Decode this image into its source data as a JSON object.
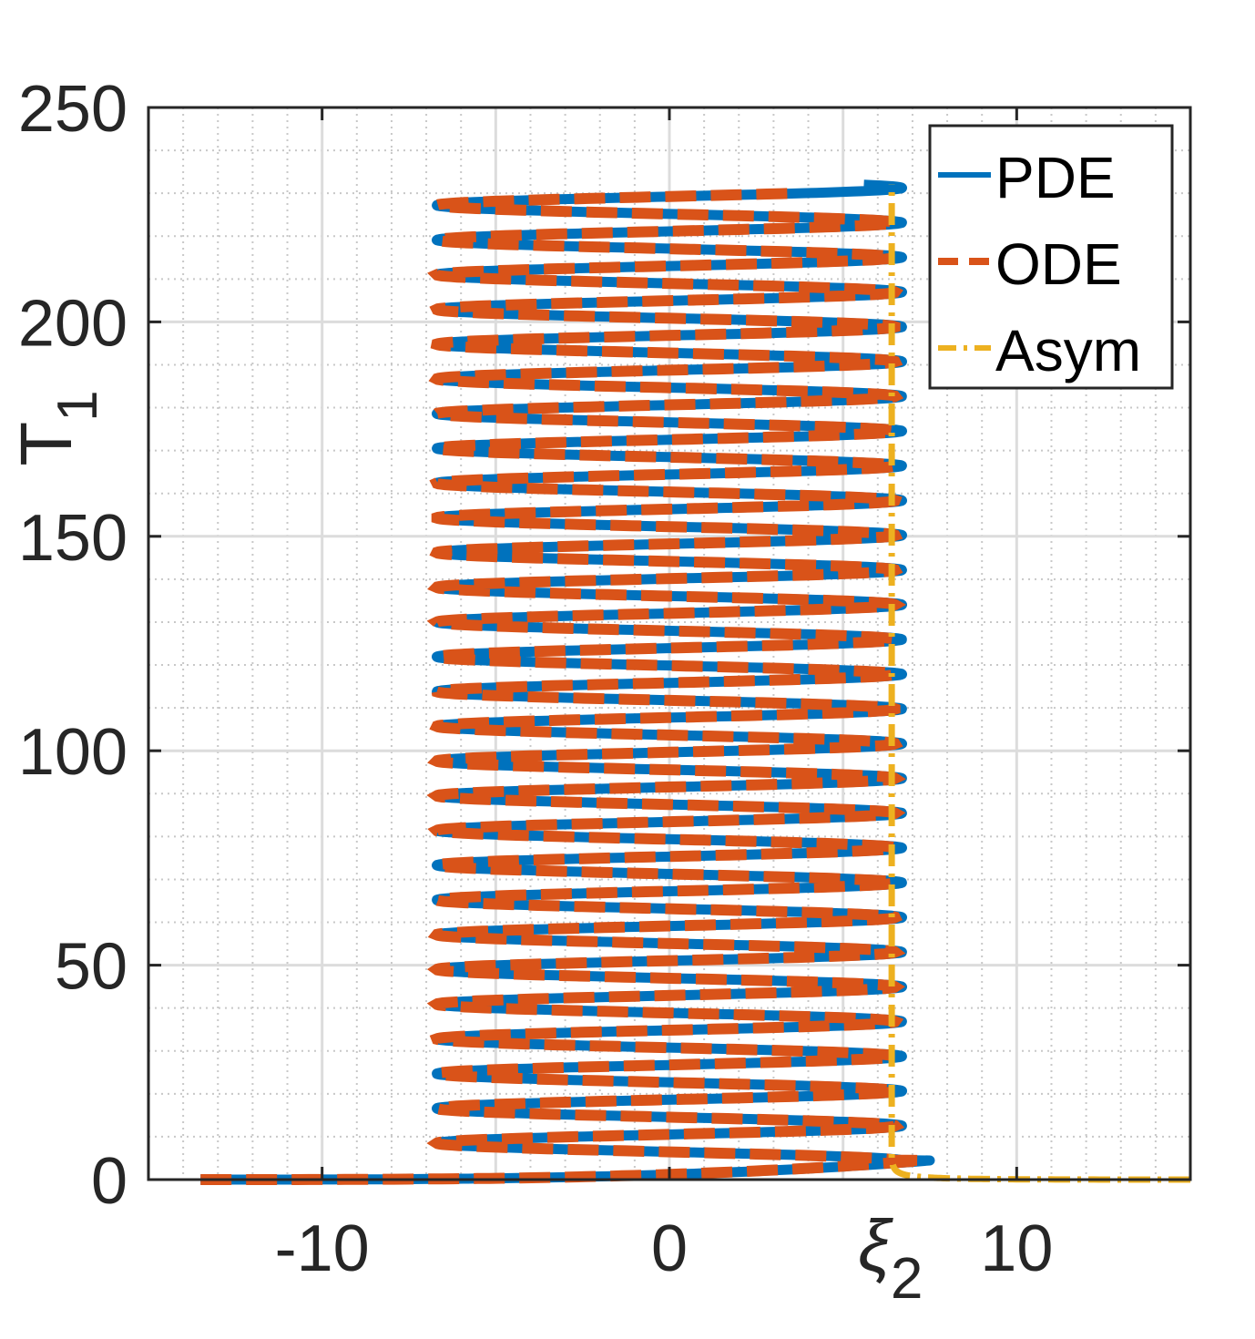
{
  "chart_data": {
    "type": "line",
    "title": "",
    "xlabel": "ξ",
    "xlabel_subscript": "2",
    "ylabel": "T",
    "ylabel_subscript": "1",
    "xlim": [
      -15,
      15
    ],
    "ylim": [
      0,
      250
    ],
    "xticks": [
      {
        "value": -10,
        "label": "-10"
      },
      {
        "value": 0,
        "label": "0"
      },
      {
        "value": 10,
        "label": "10"
      }
    ],
    "yticks": [
      {
        "value": 0,
        "label": "0"
      },
      {
        "value": 50,
        "label": "50"
      },
      {
        "value": 100,
        "label": "100"
      },
      {
        "value": 150,
        "label": "150"
      },
      {
        "value": 200,
        "label": "200"
      },
      {
        "value": 250,
        "label": "250"
      }
    ],
    "grid": "major and minor",
    "legend_location": "top-right",
    "series": [
      {
        "name": "PDE",
        "color": "#0072BD",
        "style": "solid",
        "description": "oscillating trajectory between xi2 = -6.7 and xi2 = 6.7",
        "start": {
          "x": -13.5,
          "y": 0
        },
        "left_turning_x": -6.7,
        "right_turning_x": 6.7,
        "cycle_period": 8.1,
        "first_left_turn_T": 8.5,
        "last_T": 232
      },
      {
        "name": "ODE",
        "color": "#D95319",
        "style": "dashed",
        "description": "oscillating trajectory between xi2 = -6.7 and xi2 = 6.5",
        "start": {
          "x": -13.5,
          "y": 0
        },
        "left_turning_x": -6.7,
        "right_turning_x": 6.5,
        "cycle_period": 8.1,
        "first_left_turn_T": 8.5,
        "last_T": 230
      },
      {
        "name": "Asym",
        "color": "#EDB120",
        "style": "dashdot",
        "description": "asymptote: T1 rises from 0 at xi2 = 15 to a vertical line at xi2 = 6.4",
        "asymptote_x": 6.4,
        "x_at_T0": 15,
        "y_max": 232
      }
    ],
    "annotations": [
      {
        "text": "ξ",
        "subscript": "2",
        "x": 6.0,
        "position": "below x-axis"
      }
    ]
  }
}
